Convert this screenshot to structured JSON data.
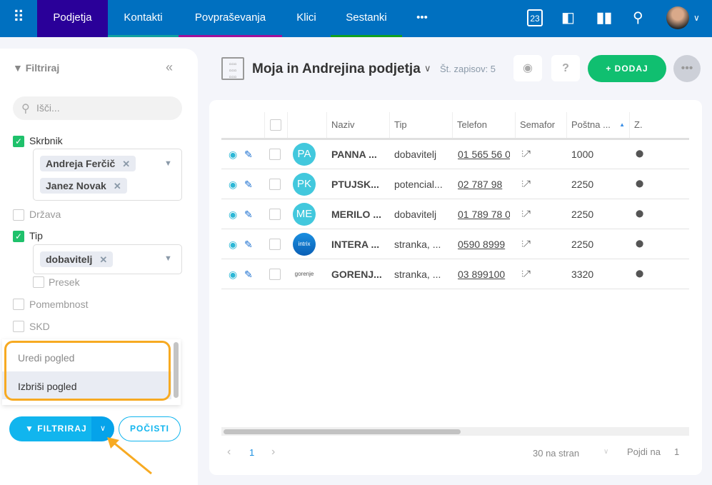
{
  "nav": {
    "tabs": [
      {
        "label": "Podjetja",
        "color": "#2a0099",
        "active": true
      },
      {
        "label": "Kontakti",
        "color": "#11a0a0"
      },
      {
        "label": "Povpraševanja",
        "color": "#a0109a"
      },
      {
        "label": "Klici",
        "color": "#0070c0"
      },
      {
        "label": "Sestanki",
        "color": "#10a020"
      }
    ],
    "more": "•••",
    "calendar_day": "23"
  },
  "sidebar": {
    "title": "Filtriraj",
    "search_placeholder": "Išči...",
    "filters": [
      {
        "label": "Skrbnik",
        "checked": true,
        "chips": [
          "Andreja Ferčič",
          "Janez Novak"
        ]
      },
      {
        "label": "Država",
        "checked": false
      },
      {
        "label": "Tip",
        "checked": true,
        "chips": [
          "dobavitelj"
        ]
      },
      {
        "label": "Presek",
        "checked": false
      },
      {
        "label": "Pomembnost",
        "checked": false
      },
      {
        "label": "SKD",
        "checked": false
      }
    ],
    "menu": [
      "Uredi pogled",
      "Izbriši pogled"
    ],
    "filter_button": "FILTRIRAJ",
    "clear_button": "POČISTI"
  },
  "header": {
    "title": "Moja in Andrejina podjetja",
    "count": "Št. zapisov: 5",
    "add_button": "+ DODAJ"
  },
  "table": {
    "columns": [
      "Naziv",
      "Tip",
      "Telefon",
      "Semafor",
      "Poštna ...",
      "Z."
    ],
    "rows": [
      {
        "avatar": "PA",
        "name": "PANNA ...",
        "type": "dobavitelj",
        "phone": "01 565 56 0",
        "post": "1000"
      },
      {
        "avatar": "PK",
        "name": "PTUJSK...",
        "type": "potencial...",
        "phone": "02 787 98",
        "post": "2250"
      },
      {
        "avatar": "ME",
        "name": "MERILO ...",
        "type": "dobavitelj",
        "phone": "01 789 78 0",
        "post": "2250"
      },
      {
        "avatar": "intrix",
        "name": "INTERA ...",
        "type": "stranka, ...",
        "phone": "0590 8999",
        "post": "2250"
      },
      {
        "avatar": "gorenje",
        "name": "GORENJ...",
        "type": "stranka, ...",
        "phone": "03 899100",
        "post": "3320"
      }
    ]
  },
  "pagination": {
    "prev": "‹",
    "page": "1",
    "next": "›",
    "per_page": "30 na stran",
    "goto_label": "Pojdi na",
    "goto_value": "1"
  }
}
